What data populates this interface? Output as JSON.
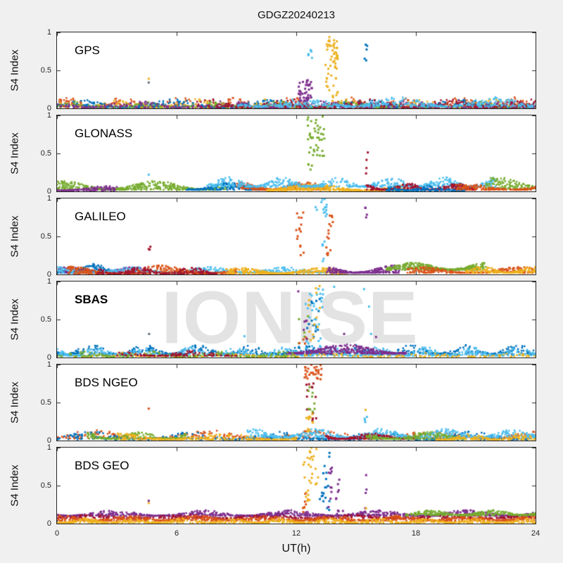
{
  "title": "GDGZ20240213",
  "watermark": "IONISE",
  "axes": {
    "ylabel": "S4 Index",
    "xlabel": "UT(h)",
    "ytick_labels": [
      "1",
      "0.5",
      "0"
    ],
    "xtick_labels": [
      "0",
      "6",
      "12",
      "18",
      "24"
    ]
  },
  "palette": {
    "blue": "#0072BD",
    "orange": "#D95319",
    "yellow": "#EDB120",
    "purple": "#7E2F8E",
    "green": "#77AC30",
    "lightblue": "#4DBEEE",
    "darkred": "#A2142F",
    "gray": "#60707f"
  },
  "colors": {
    "figure_background": "#f0f0f0",
    "axes_background": "#ffffff",
    "axis_line": "#262626",
    "watermark": "#e3e3e3"
  },
  "chart_data": {
    "type": "scatter",
    "title": "GDGZ20240213",
    "xlabel": "UT(h)",
    "ylabel": "S4 Index",
    "xlim": [
      0,
      24
    ],
    "ylim": [
      0,
      1
    ],
    "xticks": [
      0,
      6,
      12,
      18,
      24
    ],
    "yticks": [
      0,
      0.5,
      1
    ],
    "grid": false,
    "legend": "none",
    "note": "6 stacked subplots of S4 scintillation index vs universal time; dense multicolor satellite noise band below 0.2 with scintillation event clusters near UT 12-14 and a sparse column near UT 15.5; isolated outlier near UT 4.6; bands=[color,x0,x1,ybase,yamp,n], clusters=[color,x0,x1,y0,y1,n], dots=[color,x,y]",
    "panels": [
      {
        "label": "GPS",
        "label_bold": false,
        "bands": [
          [
            "orange",
            0,
            24,
            0.01,
            0.14,
            550
          ],
          [
            "yellow",
            0,
            24,
            0.01,
            0.12,
            400
          ],
          [
            "blue",
            0,
            24,
            0.01,
            0.11,
            550
          ],
          [
            "green",
            0,
            24,
            0.01,
            0.09,
            300
          ],
          [
            "purple",
            0,
            24,
            0.01,
            0.09,
            350
          ],
          [
            "darkred",
            7,
            24,
            0.01,
            0.12,
            350
          ],
          [
            "lightblue",
            9,
            24,
            0.02,
            0.13,
            400
          ]
        ],
        "clusters": [
          [
            "purple",
            12.1,
            12.8,
            0.08,
            0.38,
            40
          ],
          [
            "lightblue",
            12.55,
            12.8,
            0.58,
            0.82,
            7
          ],
          [
            "yellow",
            13.4,
            14.1,
            0.1,
            0.95,
            55
          ],
          [
            "blue",
            15.4,
            15.6,
            0.38,
            0.93,
            5
          ]
        ],
        "dots": [
          [
            "yellow",
            4.6,
            0.39
          ],
          [
            "gray",
            4.6,
            0.34
          ]
        ]
      },
      {
        "label": "GLONASS",
        "label_bold": false,
        "bands": [
          [
            "green",
            0,
            8.5,
            0.02,
            0.12,
            450
          ],
          [
            "purple",
            0,
            3,
            0.01,
            0.07,
            120
          ],
          [
            "blue",
            6.5,
            10.5,
            0.02,
            0.1,
            200
          ],
          [
            "orange",
            9,
            13.5,
            0.02,
            0.11,
            260
          ],
          [
            "yellow",
            10.5,
            17.5,
            0.01,
            0.09,
            400
          ],
          [
            "lightblue",
            7.5,
            22,
            0.06,
            0.13,
            550
          ],
          [
            "darkred",
            15.5,
            21,
            0.02,
            0.09,
            300
          ],
          [
            "blue",
            16.5,
            20.5,
            0.01,
            0.07,
            150
          ],
          [
            "green",
            21.5,
            24,
            0.03,
            0.17,
            120
          ],
          [
            "orange",
            20,
            24,
            0.02,
            0.08,
            150
          ]
        ],
        "clusters": [
          [
            "green",
            12.55,
            13.45,
            0.46,
            1.0,
            40
          ],
          [
            "green",
            12.6,
            12.8,
            0.25,
            0.45,
            4
          ],
          [
            "darkred",
            15.45,
            15.6,
            0.18,
            0.52,
            4
          ]
        ],
        "dots": [
          [
            "lightblue",
            4.6,
            0.22
          ]
        ]
      },
      {
        "label": "GALILEO",
        "label_bold": false,
        "bands": [
          [
            "blue",
            0,
            3.2,
            0.02,
            0.12,
            200
          ],
          [
            "purple",
            0,
            4.5,
            0.02,
            0.08,
            220
          ],
          [
            "lightblue",
            0,
            13.5,
            0.02,
            0.08,
            500
          ],
          [
            "orange",
            0.5,
            9,
            0.01,
            0.11,
            420
          ],
          [
            "darkred",
            2,
            8,
            0.01,
            0.09,
            200
          ],
          [
            "yellow",
            8.5,
            14.5,
            0.01,
            0.08,
            320
          ],
          [
            "purple",
            13.5,
            17.2,
            0.02,
            0.1,
            260
          ],
          [
            "green",
            16.5,
            21.5,
            0.06,
            0.1,
            400
          ],
          [
            "orange",
            17.5,
            24,
            0.02,
            0.08,
            260
          ],
          [
            "yellow",
            20.5,
            24,
            0.02,
            0.09,
            160
          ]
        ],
        "clusters": [
          [
            "darkred",
            4.55,
            4.7,
            0.29,
            0.4,
            3
          ],
          [
            "orange",
            12.0,
            12.4,
            0.24,
            0.87,
            16
          ],
          [
            "lightblue",
            12.95,
            13.6,
            0.76,
            1.0,
            14
          ],
          [
            "lightblue",
            13.3,
            13.45,
            0.15,
            0.45,
            6
          ],
          [
            "orange",
            13.5,
            13.85,
            0.22,
            0.78,
            15
          ],
          [
            "purple",
            15.45,
            15.6,
            0.33,
            0.93,
            4
          ]
        ],
        "dots": []
      },
      {
        "label": "SBAS",
        "label_bold": true,
        "bands": [
          [
            "blue",
            0,
            24,
            0.04,
            0.13,
            650
          ],
          [
            "lightblue",
            0,
            24,
            0.02,
            0.12,
            750
          ],
          [
            "purple",
            11.5,
            17.5,
            0.05,
            0.13,
            350
          ],
          [
            "yellow",
            0,
            24,
            0.01,
            0.06,
            220
          ],
          [
            "green",
            0,
            12,
            0.01,
            0.07,
            160
          ],
          [
            "darkred",
            3,
            9,
            0.02,
            0.07,
            120
          ]
        ],
        "clusters": [
          [
            "lightblue",
            12.45,
            13.35,
            0.1,
            1.0,
            32
          ],
          [
            "blue",
            12.5,
            13.3,
            0.12,
            0.92,
            14
          ],
          [
            "yellow",
            12.6,
            13.2,
            0.22,
            0.98,
            13
          ],
          [
            "green",
            12.1,
            12.7,
            0.18,
            0.65,
            6
          ],
          [
            "orange",
            12.1,
            12.5,
            0.18,
            0.3,
            4
          ],
          [
            "purple",
            12.3,
            12.6,
            0.2,
            0.5,
            5
          ]
        ],
        "dots": [
          [
            "gray",
            4.62,
            0.31
          ],
          [
            "lightblue",
            9.4,
            0.28
          ],
          [
            "purple",
            12.1,
            0.87
          ],
          [
            "lightblue",
            13.9,
            0.93
          ],
          [
            "purple",
            14.4,
            0.31
          ],
          [
            "lightblue",
            15.4,
            0.9
          ],
          [
            "lightblue",
            15.65,
            0.67
          ],
          [
            "lightblue",
            15.75,
            0.31
          ],
          [
            "purple",
            16.0,
            0.27
          ]
        ]
      },
      {
        "label": "BDS NGEO",
        "label_bold": false,
        "bands": [
          [
            "orange",
            0,
            24,
            0.02,
            0.12,
            520
          ],
          [
            "blue",
            0,
            24,
            0.01,
            0.11,
            420
          ],
          [
            "green",
            1.5,
            6.5,
            0.02,
            0.1,
            200
          ],
          [
            "yellow",
            3,
            12,
            0.01,
            0.09,
            260
          ],
          [
            "lightblue",
            9.5,
            24,
            0.04,
            0.12,
            550
          ],
          [
            "darkred",
            13.5,
            18,
            0.02,
            0.08,
            200
          ],
          [
            "green",
            15.5,
            20.5,
            0.02,
            0.1,
            220
          ],
          [
            "yellow",
            19,
            24,
            0.01,
            0.08,
            160
          ]
        ],
        "clusters": [
          [
            "orange",
            12.4,
            13.3,
            0.8,
            1.0,
            30
          ],
          [
            "darkred",
            12.5,
            13.0,
            0.25,
            0.85,
            14
          ],
          [
            "green",
            12.6,
            12.95,
            0.35,
            0.72,
            9
          ],
          [
            "yellow",
            12.5,
            12.85,
            0.08,
            0.35,
            12
          ],
          [
            "lightblue",
            15.4,
            15.55,
            0.2,
            0.62,
            4
          ],
          [
            "yellow",
            15.45,
            15.55,
            0.4,
            0.47,
            1
          ]
        ],
        "dots": [
          [
            "orange",
            4.6,
            0.42
          ]
        ]
      },
      {
        "label": "BDS GEO",
        "label_bold": false,
        "bands": [
          [
            "purple",
            0,
            24,
            0.1,
            0.08,
            950
          ],
          [
            "darkred",
            0,
            24,
            0.07,
            0.05,
            450
          ],
          [
            "orange",
            0,
            24,
            0.04,
            0.07,
            850
          ],
          [
            "yellow",
            0,
            24,
            0.01,
            0.06,
            750
          ],
          [
            "green",
            17.5,
            24,
            0.11,
            0.07,
            320
          ]
        ],
        "clusters": [
          [
            "yellow",
            12.35,
            13.1,
            0.5,
            1.0,
            22
          ],
          [
            "yellow",
            12.4,
            12.7,
            0.12,
            0.45,
            8
          ],
          [
            "orange",
            12.3,
            12.5,
            0.12,
            0.42,
            6
          ],
          [
            "blue",
            13.15,
            13.7,
            0.15,
            0.93,
            20
          ],
          [
            "purple",
            13.6,
            14.35,
            0.12,
            0.85,
            20
          ],
          [
            "purple",
            15.45,
            15.6,
            0.2,
            0.65,
            4
          ]
        ],
        "dots": [
          [
            "purple",
            4.6,
            0.3
          ],
          [
            "yellow",
            4.6,
            0.27
          ],
          [
            "yellow",
            15.5,
            0.2
          ]
        ]
      }
    ]
  }
}
